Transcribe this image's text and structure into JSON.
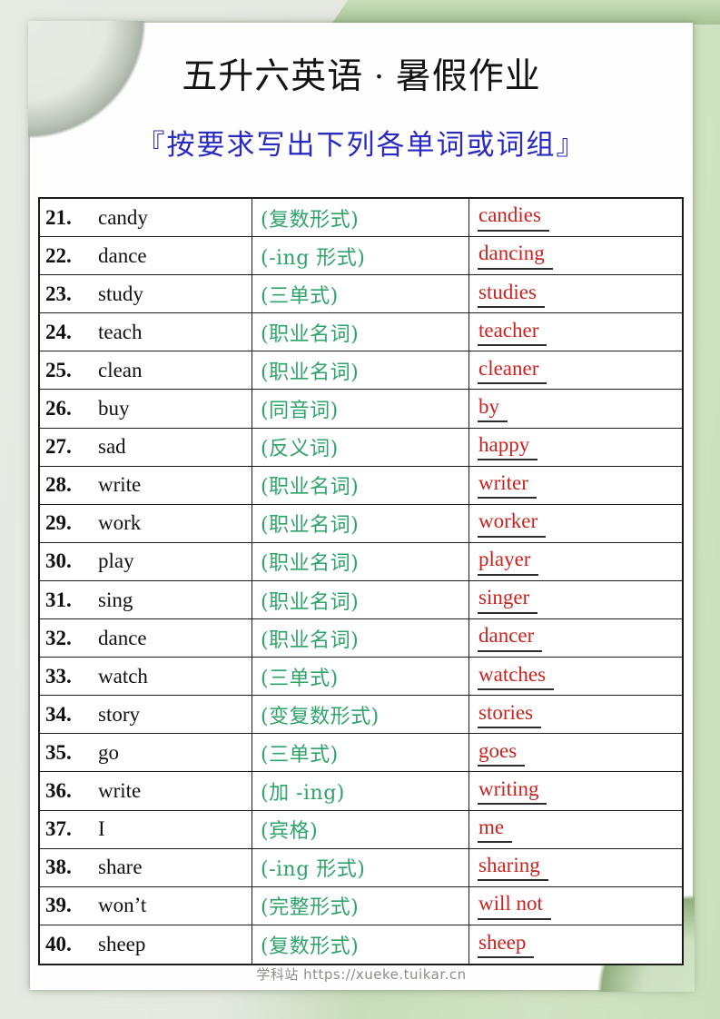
{
  "header": {
    "title": "五升六英语 · 暑假作业",
    "subtitle": "『按要求写出下列各单词或词组』"
  },
  "worksheet": {
    "rows": [
      {
        "num": "21.",
        "word": "candy",
        "prompt": "(复数形式)",
        "answer": "candies"
      },
      {
        "num": "22.",
        "word": "dance",
        "prompt": "(-ing 形式)",
        "answer": "dancing"
      },
      {
        "num": "23.",
        "word": "study",
        "prompt": "(三单式)",
        "answer": "studies"
      },
      {
        "num": "24.",
        "word": "teach",
        "prompt": "(职业名词)",
        "answer": "teacher"
      },
      {
        "num": "25.",
        "word": "clean",
        "prompt": "(职业名词)",
        "answer": "cleaner"
      },
      {
        "num": "26.",
        "word": "buy",
        "prompt": "(同音词)",
        "answer": "by"
      },
      {
        "num": "27.",
        "word": "sad",
        "prompt": "(反义词)",
        "answer": "happy"
      },
      {
        "num": "28.",
        "word": "write",
        "prompt": "(职业名词)",
        "answer": "writer"
      },
      {
        "num": "29.",
        "word": "work",
        "prompt": "(职业名词)",
        "answer": "worker"
      },
      {
        "num": "30.",
        "word": "play",
        "prompt": "(职业名词)",
        "answer": "player"
      },
      {
        "num": "31.",
        "word": "sing",
        "prompt": "(职业名词)",
        "answer": "singer"
      },
      {
        "num": "32.",
        "word": "dance",
        "prompt": "(职业名词)",
        "answer": "dancer"
      },
      {
        "num": "33.",
        "word": "watch",
        "prompt": "(三单式)",
        "answer": "watches"
      },
      {
        "num": "34.",
        "word": "story",
        "prompt": "(变复数形式)",
        "answer": "stories"
      },
      {
        "num": "35.",
        "word": "go",
        "prompt": "(三单式)",
        "answer": "goes"
      },
      {
        "num": "36.",
        "word": "write",
        "prompt": "(加 -ing)",
        "answer": "writing"
      },
      {
        "num": "37.",
        "word": "I",
        "prompt": "(宾格)",
        "answer": "me"
      },
      {
        "num": "38.",
        "word": "share",
        "prompt": "(-ing 形式)",
        "answer": "sharing"
      },
      {
        "num": "39.",
        "word": "won’t",
        "prompt": "(完整形式)",
        "answer": "will not"
      },
      {
        "num": "40.",
        "word": "sheep",
        "prompt": "(复数形式)",
        "answer": "sheep"
      }
    ]
  },
  "footer": {
    "text": "学科站 https://xueke.tuikar.cn"
  },
  "colors": {
    "prompt_green": "#2fa46a",
    "answer_red": "#cb221e",
    "subtitle_blue": "#2a2ac0",
    "underline_dark": "#2c2c2c",
    "table_border": "#1c1c1c",
    "background_grey": "#e6eae3",
    "background_green": "#cfe2c2",
    "paper_white": "#fefefe"
  }
}
